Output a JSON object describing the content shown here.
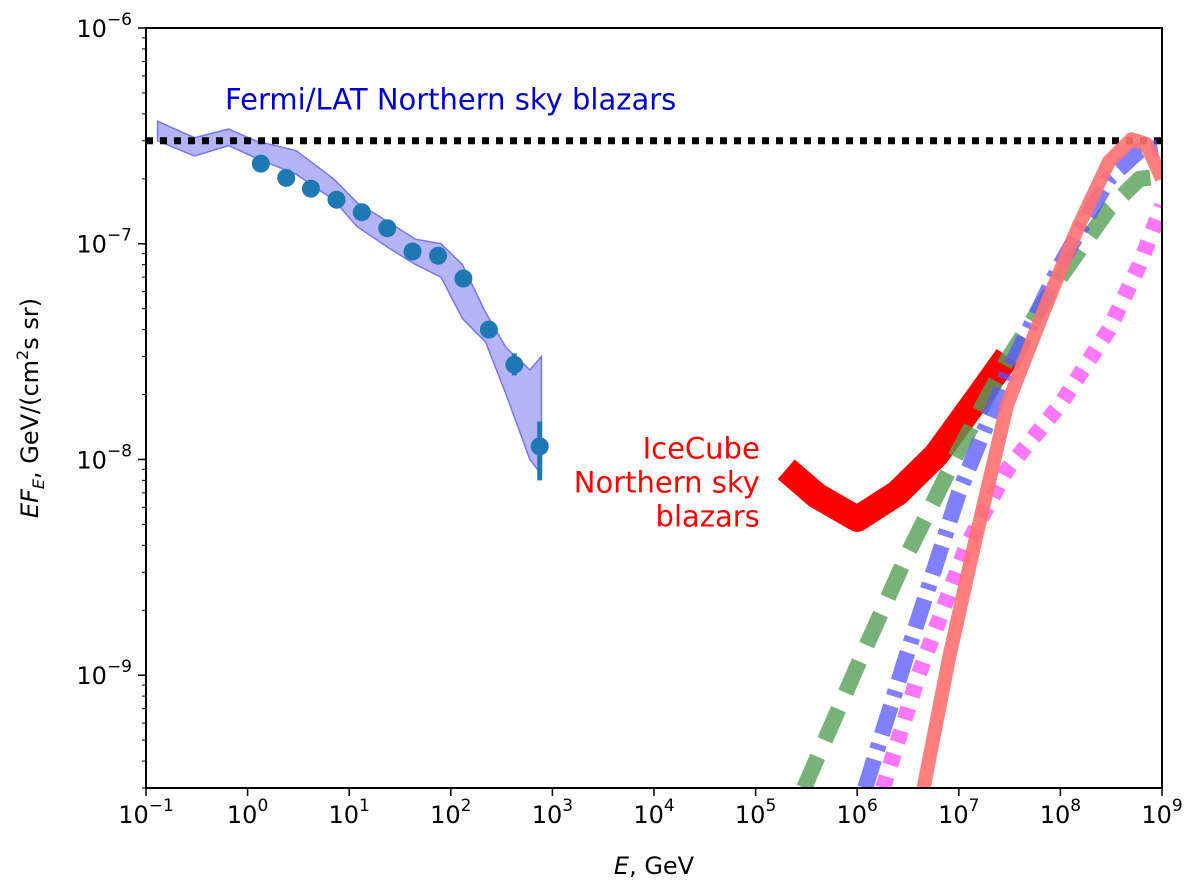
{
  "chart_data": {
    "type": "line",
    "xscale": "log",
    "yscale": "log",
    "xlim": [
      0.1,
      1000000000
    ],
    "ylim": [
      3e-10,
      1e-06
    ],
    "xlabel": {
      "italic": "E",
      "rest": ", GeV"
    },
    "ylabel": {
      "italic": "EF",
      "sub": "E",
      "rest1": ", GeV/(cm",
      "sup": "2",
      "rest2": "s sr)"
    },
    "xticks": [
      {
        "value": 0.1,
        "base": "10",
        "exp": "−1"
      },
      {
        "value": 1,
        "base": "10",
        "exp": "0"
      },
      {
        "value": 10,
        "base": "10",
        "exp": "1"
      },
      {
        "value": 100,
        "base": "10",
        "exp": "2"
      },
      {
        "value": 1000,
        "base": "10",
        "exp": "3"
      },
      {
        "value": 10000,
        "base": "10",
        "exp": "4"
      },
      {
        "value": 100000,
        "base": "10",
        "exp": "5"
      },
      {
        "value": 1000000,
        "base": "10",
        "exp": "6"
      },
      {
        "value": 10000000,
        "base": "10",
        "exp": "7"
      },
      {
        "value": 100000000,
        "base": "10",
        "exp": "8"
      },
      {
        "value": 1000000000,
        "base": "10",
        "exp": "9"
      }
    ],
    "yticks": [
      {
        "value": 1e-09,
        "base": "10",
        "exp": "−9"
      },
      {
        "value": 1e-08,
        "base": "10",
        "exp": "−8"
      },
      {
        "value": 1e-07,
        "base": "10",
        "exp": "−7"
      },
      {
        "value": 1e-06,
        "base": "10",
        "exp": "−6"
      }
    ],
    "annotations": [
      {
        "lines": [
          "Fermi/LAT Northern sky blazars"
        ],
        "color": "#0000cc",
        "x": 0.6,
        "y": 4.2e-07,
        "anchor": "start"
      },
      {
        "lines": [
          "IceCube",
          "Northern sky",
          "blazars"
        ],
        "color": "#ff0000",
        "x": 110000.0,
        "y": 1.01e-08,
        "anchor": "end"
      }
    ],
    "horizontal_line": {
      "y": 3e-07,
      "color": "#000000",
      "style": "dotted"
    },
    "fermi_band": {
      "color": "#7777ee",
      "x": [
        0.13,
        0.3,
        0.65,
        1.2,
        3,
        7,
        12,
        25,
        45,
        80,
        130,
        220,
        350,
        600,
        780
      ],
      "upper": [
        3.7e-07,
        3.1e-07,
        3.4e-07,
        3e-07,
        2.7e-07,
        2e-07,
        1.55e-07,
        1.25e-07,
        1.05e-07,
        1e-07,
        8e-08,
        4.8e-08,
        3.3e-08,
        2.6e-08,
        3e-08
      ],
      "lower": [
        3e-07,
        2.55e-07,
        2.85e-07,
        2.5e-07,
        2.1e-07,
        1.6e-07,
        1.2e-07,
        9.5e-08,
        8e-08,
        7e-08,
        4.5e-08,
        3.5e-08,
        2e-08,
        1e-08,
        8.5e-09
      ]
    },
    "fermi_points": {
      "color": "#1f77b4",
      "x": [
        1.35,
        2.4,
        4.2,
        7.5,
        13.3,
        23.7,
        42,
        75,
        133,
        237,
        422,
        750
      ],
      "y": [
        2.35e-07,
        2.02e-07,
        1.8e-07,
        1.6e-07,
        1.4e-07,
        1.18e-07,
        9.2e-08,
        8.8e-08,
        6.9e-08,
        4e-08,
        2.75e-08,
        1.15e-08
      ],
      "yerr_low": [
        null,
        null,
        null,
        null,
        null,
        null,
        null,
        null,
        null,
        null,
        2.45e-08,
        8e-09
      ],
      "yerr_high": [
        null,
        null,
        null,
        null,
        null,
        null,
        null,
        null,
        null,
        null,
        3.1e-08,
        1.5e-08
      ]
    },
    "series": [
      {
        "color": "#ff0000",
        "style": "solid",
        "width": 26,
        "opacity": 1,
        "x": [
          200000.0,
          400000.0,
          1000000.0,
          2500000.0,
          6000000.0,
          15000000.0,
          30000000.0
        ],
        "y": [
          9e-09,
          6.8e-09,
          5.3e-09,
          7e-09,
          1.05e-08,
          1.9e-08,
          3e-08
        ]
      },
      {
        "color": "#55a055",
        "style": "dashed",
        "width": 16,
        "opacity": 0.8,
        "x": [
          300000.0,
          1000000.0,
          3000000.0,
          10000000.0,
          30000000.0,
          100000000.0,
          300000000.0,
          600000000.0,
          1000000000.0
        ],
        "y": [
          3e-10,
          1.1e-09,
          3.5e-09,
          1.1e-08,
          2.9e-08,
          7e-08,
          1.45e-07,
          2e-07,
          2.05e-07
        ]
      },
      {
        "color": "#5555ff",
        "style": "dashdot",
        "width": 16,
        "opacity": 0.75,
        "x": [
          1200000.0,
          3000000.0,
          10000000.0,
          30000000.0,
          100000000.0,
          300000000.0,
          600000000.0,
          1000000000.0
        ],
        "y": [
          3e-10,
          1.2e-09,
          7e-09,
          2.5e-08,
          8e-08,
          2e-07,
          2.7e-07,
          2.8e-07
        ]
      },
      {
        "color": "#ff55ff",
        "style": "dotted",
        "width": 16,
        "opacity": 0.8,
        "x": [
          1800000.0,
          4000000.0,
          12000000.0,
          30000000.0,
          100000000.0,
          300000000.0,
          600000000.0,
          1000000000.0
        ],
        "y": [
          3e-10,
          1e-09,
          4e-09,
          9e-09,
          1.8e-08,
          4e-08,
          8e-08,
          1.5e-07
        ]
      },
      {
        "color": "#ff7070",
        "style": "solid",
        "width": 14,
        "opacity": 0.9,
        "x": [
          4500000.0,
          8000000.0,
          15000000.0,
          30000000.0,
          70000000.0,
          150000000.0,
          300000000.0,
          500000000.0,
          700000000.0,
          1000000000.0
        ],
        "y": [
          3e-10,
          1.2e-09,
          4.5e-09,
          1.8e-08,
          5e-08,
          1.2e-07,
          2.4e-07,
          3.05e-07,
          2.9e-07,
          2e-07
        ]
      }
    ]
  }
}
